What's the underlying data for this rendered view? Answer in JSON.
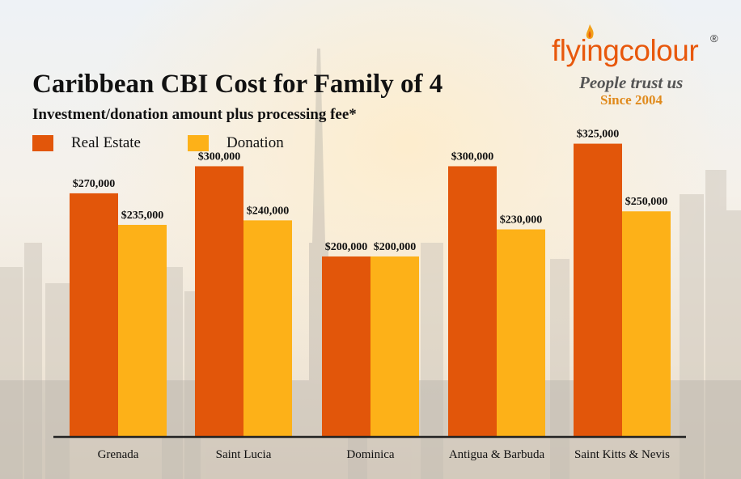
{
  "chart_data": {
    "type": "bar",
    "title": "Caribbean CBI Cost for Family of 4",
    "subtitle": "Investment/donation amount plus processing fee*",
    "categories": [
      "Grenada",
      "Saint Lucia",
      "Dominica",
      "Antigua & Barbuda",
      "Saint Kitts & Nevis"
    ],
    "series": [
      {
        "name": "Real Estate",
        "color": "#e2560a",
        "values": [
          270000,
          300000,
          200000,
          300000,
          325000
        ],
        "labels": [
          "$270,000",
          "$300,000",
          "$200,000",
          "$300,000",
          "$325,000"
        ]
      },
      {
        "name": "Donation",
        "color": "#fdb118",
        "values": [
          235000,
          240000,
          200000,
          230000,
          250000
        ],
        "labels": [
          "$235,000",
          "$240,000",
          "$200,000",
          "$230,000",
          "$250,000"
        ]
      }
    ],
    "xlabel": "",
    "ylabel": "",
    "ylim": [
      0,
      330000
    ],
    "grid": false,
    "legend": "top-left"
  },
  "logo": {
    "name": "flyingcolour",
    "registered": "®",
    "tagline": "People trust us",
    "since": "Since 2004"
  }
}
